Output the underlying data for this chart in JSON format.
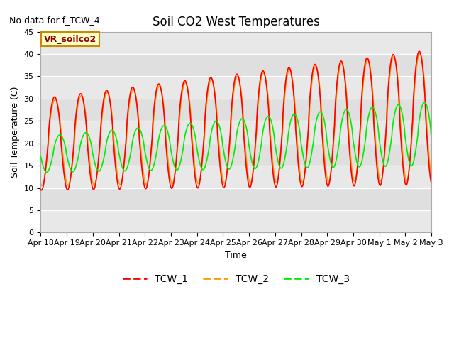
{
  "title": "Soil CO2 West Temperatures",
  "no_data_text": "No data for f_TCW_4",
  "annotation_text": "VR_soilco2",
  "xlabel": "Time",
  "ylabel": "Soil Temperature (C)",
  "ylim": [
    0,
    45
  ],
  "yticks": [
    0,
    5,
    10,
    15,
    20,
    25,
    30,
    35,
    40,
    45
  ],
  "date_labels": [
    "Apr 18",
    "Apr 19",
    "Apr 20",
    "Apr 21",
    "Apr 22",
    "Apr 23",
    "Apr 24",
    "Apr 25",
    "Apr 26",
    "Apr 27",
    "Apr 28",
    "Apr 29",
    "Apr 30",
    "May 1",
    "May 2",
    "May 3"
  ],
  "fig_bg": "#ffffff",
  "axes_bg": "#e8e8e8",
  "band_color": "#d8d8d8",
  "band_ranges": [
    [
      35,
      40
    ],
    [
      25,
      30
    ],
    [
      15,
      20
    ],
    [
      5,
      10
    ]
  ],
  "tcw1_color": "#ff0000",
  "tcw2_color": "#ff9900",
  "tcw3_color": "#00ee00",
  "line_width": 1.2,
  "title_fontsize": 12,
  "label_fontsize": 9,
  "tick_fontsize": 8
}
